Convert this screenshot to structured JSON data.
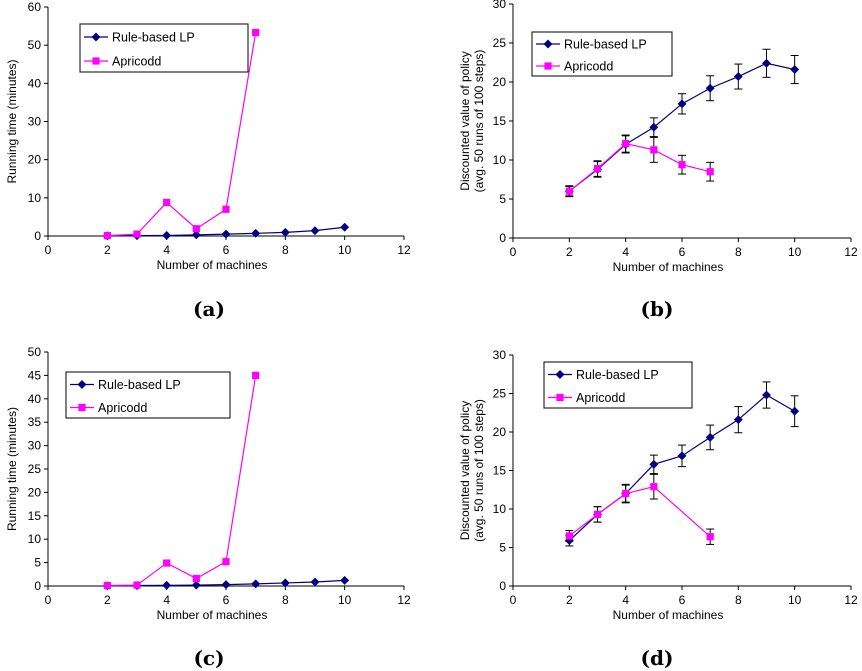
{
  "colors": {
    "rule": "#000080",
    "apricodd": "#FF00FF",
    "axis": "#000000"
  },
  "legend_labels": {
    "rule": "Rule-based LP",
    "apricodd": "Apricodd"
  },
  "captions": [
    "(a)",
    "(b)",
    "(c)",
    "(d)"
  ],
  "chart_data": [
    {
      "type": "line",
      "title": "",
      "xlabel": "Number of machines",
      "ylabel": "Running time (minutes)",
      "xlim": [
        0,
        12
      ],
      "ylim": [
        0,
        60
      ],
      "xticks": [
        0,
        2,
        4,
        6,
        8,
        10,
        12
      ],
      "yticks": [
        0,
        10,
        20,
        30,
        40,
        50,
        60
      ],
      "legend": "top-left",
      "grid": false,
      "series": [
        {
          "name": "Rule-based LP",
          "marker": "diamond",
          "x": [
            2,
            3,
            4,
            5,
            6,
            7,
            8,
            9,
            10
          ],
          "y": [
            0.05,
            0.1,
            0.15,
            0.3,
            0.5,
            0.7,
            0.95,
            1.4,
            2.3
          ]
        },
        {
          "name": "Apricodd",
          "marker": "square",
          "x": [
            2,
            3,
            4,
            5,
            6,
            7
          ],
          "y": [
            0.1,
            0.5,
            8.8,
            1.9,
            7.0,
            53.3
          ]
        }
      ]
    },
    {
      "type": "line",
      "title": "",
      "xlabel": "Number of machines",
      "ylabel": [
        "Discounted value of policy",
        "(avg. 50 runs of 100 steps)"
      ],
      "xlim": [
        0,
        12
      ],
      "ylim": [
        0,
        30
      ],
      "xticks": [
        0,
        2,
        4,
        6,
        8,
        10,
        12
      ],
      "yticks": [
        0,
        5,
        10,
        15,
        20,
        25,
        30
      ],
      "legend": "top-left",
      "grid": false,
      "error_bars": true,
      "series": [
        {
          "name": "Rule-based LP",
          "marker": "diamond",
          "x": [
            2,
            3,
            4,
            5,
            6,
            7,
            8,
            9,
            10
          ],
          "y": [
            6.0,
            8.8,
            12.0,
            14.2,
            17.2,
            19.2,
            20.7,
            22.4,
            21.6
          ],
          "err": [
            0.7,
            1.0,
            1.1,
            1.2,
            1.3,
            1.6,
            1.6,
            1.8,
            1.8
          ]
        },
        {
          "name": "Apricodd",
          "marker": "square",
          "x": [
            2,
            3,
            4,
            5,
            6,
            7
          ],
          "y": [
            6.0,
            8.9,
            12.1,
            11.3,
            9.4,
            8.5
          ],
          "err": [
            0.6,
            1.0,
            1.1,
            1.6,
            1.2,
            1.2
          ]
        }
      ]
    },
    {
      "type": "line",
      "title": "",
      "xlabel": "Number of machines",
      "ylabel": "Running time (minutes)",
      "xlim": [
        0,
        12
      ],
      "ylim": [
        0,
        50
      ],
      "xticks": [
        0,
        2,
        4,
        6,
        8,
        10,
        12
      ],
      "yticks": [
        0,
        5,
        10,
        15,
        20,
        25,
        30,
        35,
        40,
        45,
        50
      ],
      "legend": "top-left",
      "grid": false,
      "series": [
        {
          "name": "Rule-based LP",
          "marker": "diamond",
          "x": [
            2,
            3,
            4,
            5,
            6,
            7,
            8,
            9,
            10
          ],
          "y": [
            0.05,
            0.1,
            0.15,
            0.2,
            0.3,
            0.45,
            0.65,
            0.85,
            1.2
          ]
        },
        {
          "name": "Apricodd",
          "marker": "square",
          "x": [
            2,
            3,
            4,
            5,
            6,
            7
          ],
          "y": [
            0.1,
            0.2,
            4.9,
            1.6,
            5.2,
            45.0
          ]
        }
      ]
    },
    {
      "type": "line",
      "title": "",
      "xlabel": "Number of machines",
      "ylabel": [
        "Discounted value of policy",
        "(avg. 50 runs of 100 steps)"
      ],
      "xlim": [
        0,
        12
      ],
      "ylim": [
        0,
        30
      ],
      "xticks": [
        0,
        2,
        4,
        6,
        8,
        10,
        12
      ],
      "yticks": [
        0,
        5,
        10,
        15,
        20,
        25,
        30
      ],
      "legend": "top-left",
      "grid": false,
      "error_bars": true,
      "series": [
        {
          "name": "Rule-based LP",
          "marker": "diamond",
          "x": [
            2,
            3,
            4,
            5,
            6,
            7,
            8,
            9,
            10
          ],
          "y": [
            5.9,
            9.3,
            12.0,
            15.8,
            16.9,
            19.3,
            21.6,
            24.8,
            22.7
          ],
          "err": [
            0.7,
            1.0,
            1.2,
            1.2,
            1.4,
            1.6,
            1.7,
            1.7,
            2.0
          ]
        },
        {
          "name": "Apricodd",
          "marker": "square",
          "x": [
            2,
            3,
            4,
            5,
            7
          ],
          "y": [
            6.5,
            9.3,
            12.0,
            12.9,
            6.4
          ],
          "err": [
            0.7,
            1.0,
            1.1,
            1.6,
            1.0
          ]
        }
      ]
    }
  ]
}
